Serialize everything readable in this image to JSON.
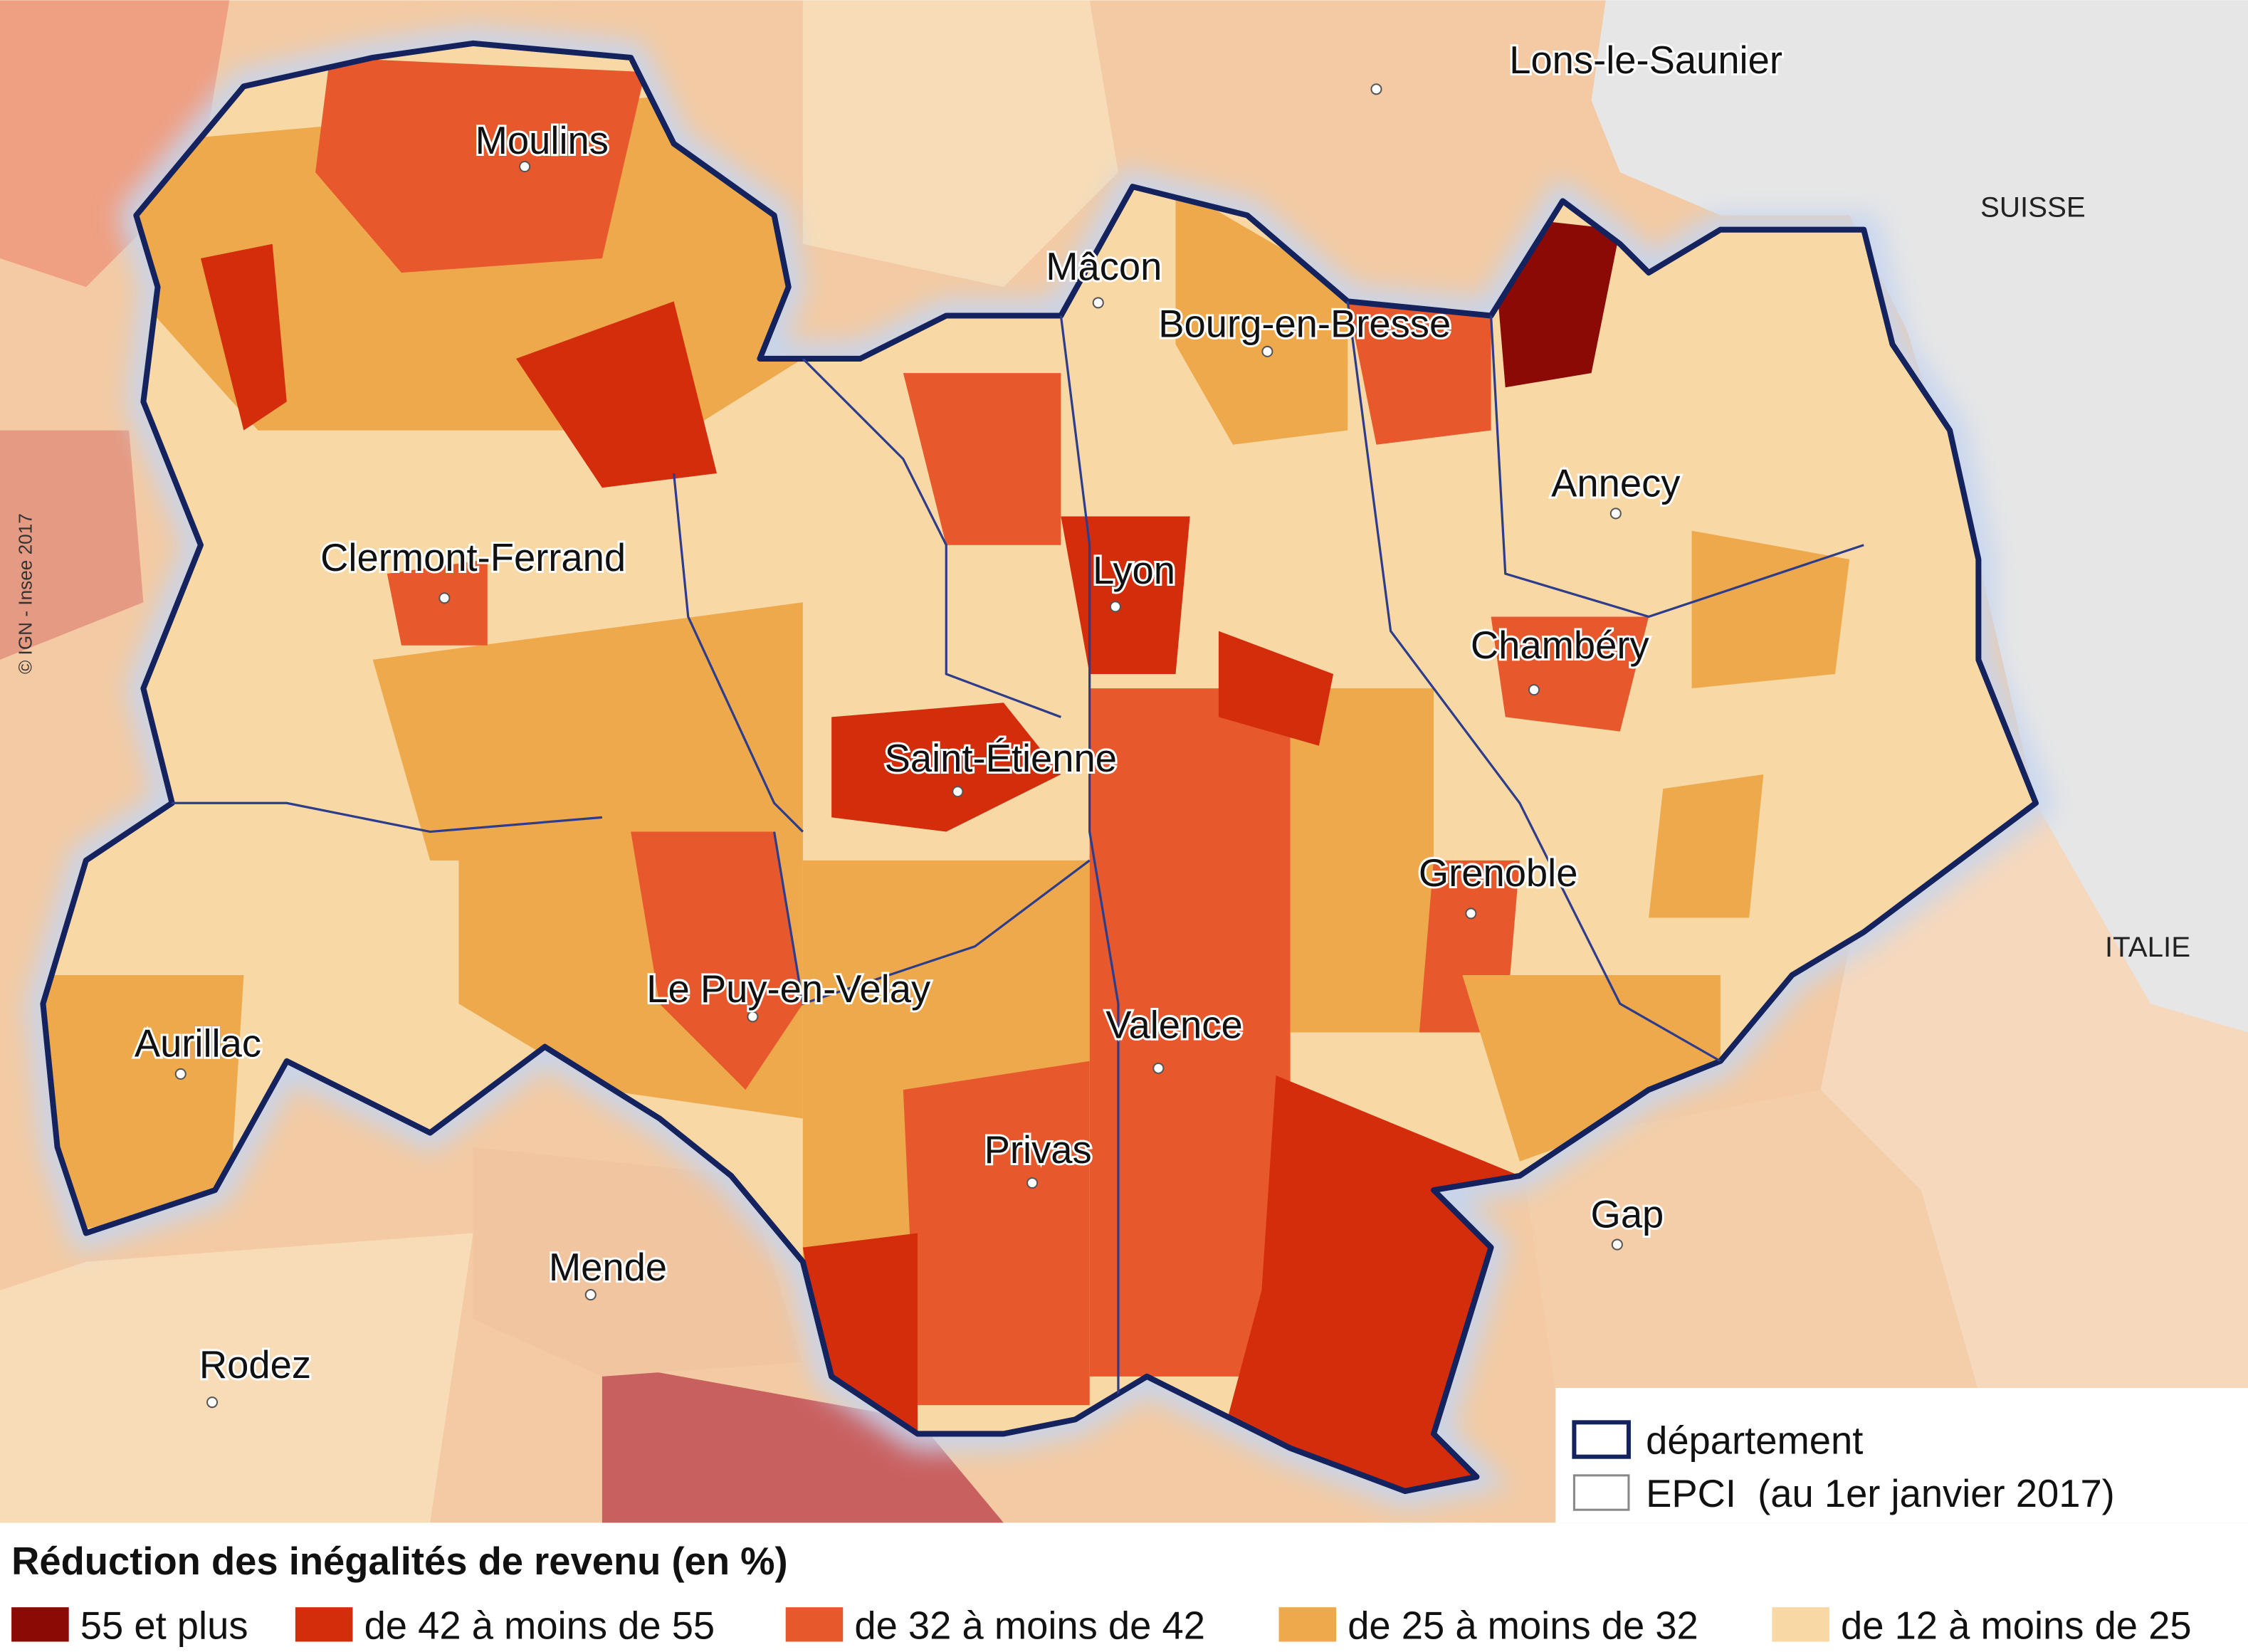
{
  "map": {
    "copyright": "© IGN - Insee 2017",
    "countries": [
      "SUISSE",
      "ITALIE"
    ],
    "cities": [
      "Lons-le-Saunier",
      "Moulins",
      "Mâcon",
      "Bourg-en-Bresse",
      "Annecy",
      "Clermont-Ferrand",
      "Lyon",
      "Chambéry",
      "Saint-Étienne",
      "Grenoble",
      "Le Puy-en-Velay",
      "Aurillac",
      "Valence",
      "Privas",
      "Gap",
      "Mende",
      "Rodez"
    ],
    "boundary_legend": [
      "département",
      "EPCI  (au 1er janvier 2017)"
    ]
  },
  "legend": {
    "title": "Réduction des inégalités de revenu (en %)",
    "classes": [
      {
        "label": "55 et plus",
        "color": "#8b0a06"
      },
      {
        "label": "de 42 à moins de 55",
        "color": "#d42d0c"
      },
      {
        "label": "de 32 à moins de 42",
        "color": "#e8582d"
      },
      {
        "label": "de 25 à moins de 32",
        "color": "#eda94c"
      },
      {
        "label": "de 12 à moins de 25",
        "color": "#f8d8a5"
      }
    ]
  }
}
